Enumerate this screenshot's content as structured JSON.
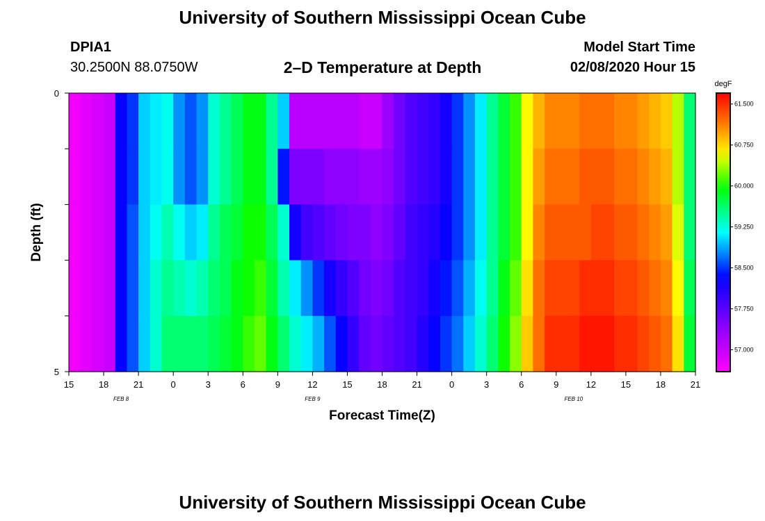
{
  "header": {
    "title": "University of Southern Mississippi Ocean Cube",
    "station_id": "DPIA1",
    "station_coords": "30.2500N 88.0750W",
    "plot_title": "2–D Temperature at Depth",
    "start_label": "Model Start Time",
    "start_value": "02/08/2020 Hour 15"
  },
  "footer": {
    "title": "University of Southern Mississippi Ocean Cube"
  },
  "chart_data": {
    "type": "heatmap",
    "xlabel": "Forecast Time(Z)",
    "ylabel": "Depth (ft)",
    "x_tick_labels": [
      "15",
      "18",
      "21",
      "0",
      "3",
      "6",
      "9",
      "12",
      "15",
      "18",
      "21",
      "0",
      "3",
      "6",
      "9",
      "12",
      "15",
      "18",
      "21"
    ],
    "day_labels": [
      {
        "label": "FEB 8",
        "tick_index": 1.5
      },
      {
        "label": "FEB 9",
        "tick_index": 7
      },
      {
        "label": "FEB 10",
        "tick_index": 14.5
      }
    ],
    "y_tick_labels": [
      "0",
      "5"
    ],
    "y_ticks_count": 6,
    "colorbar": {
      "unit": "degF",
      "min": 56.6,
      "max": 61.7,
      "labels": [
        "61.500",
        "60.750",
        "60.000",
        "59.250",
        "58.500",
        "57.750",
        "57.000"
      ],
      "label_values": [
        61.5,
        60.75,
        60.0,
        59.25,
        58.5,
        57.75,
        57.0
      ]
    },
    "time_steps_hours": 54,
    "depth_rows": 5,
    "values_degF": [
      [
        56.7,
        56.8,
        56.9,
        57.0,
        58.3,
        58.5,
        59.0,
        59.1,
        59.2,
        58.8,
        58.6,
        58.8,
        59.3,
        59.5,
        59.7,
        59.9,
        59.9,
        59.5,
        59.0,
        57.1,
        57.1,
        57.1,
        57.1,
        57.1,
        57.1,
        57.0,
        57.0,
        57.3,
        57.6,
        57.8,
        57.9,
        58.0,
        58.2,
        58.5,
        58.8,
        59.1,
        59.5,
        59.8,
        60.1,
        60.6,
        60.9,
        61.1,
        61.1,
        61.1,
        61.2,
        61.2,
        61.2,
        61.1,
        61.1,
        61.0,
        60.9,
        60.8,
        60.4,
        59.6
      ],
      [
        56.7,
        56.8,
        56.9,
        57.0,
        58.3,
        58.5,
        59.0,
        59.1,
        59.2,
        58.8,
        58.6,
        58.8,
        59.3,
        59.5,
        59.7,
        59.9,
        59.9,
        59.5,
        58.4,
        57.5,
        57.5,
        57.5,
        57.4,
        57.4,
        57.4,
        57.3,
        57.3,
        57.4,
        57.6,
        57.8,
        57.9,
        58.0,
        58.2,
        58.5,
        58.8,
        59.1,
        59.5,
        59.8,
        60.1,
        60.6,
        61.0,
        61.2,
        61.2,
        61.2,
        61.3,
        61.3,
        61.3,
        61.2,
        61.2,
        61.1,
        61.0,
        60.9,
        60.4,
        59.6
      ],
      [
        56.7,
        56.8,
        56.9,
        57.0,
        58.3,
        58.6,
        59.0,
        59.2,
        59.4,
        59.2,
        59.0,
        59.1,
        59.5,
        59.7,
        59.8,
        60.0,
        60.0,
        59.7,
        59.3,
        58.2,
        57.9,
        57.8,
        57.7,
        57.6,
        57.5,
        57.5,
        57.4,
        57.5,
        57.7,
        57.9,
        58.0,
        58.1,
        58.3,
        58.5,
        58.8,
        59.1,
        59.5,
        59.8,
        60.1,
        60.6,
        61.1,
        61.3,
        61.3,
        61.3,
        61.3,
        61.4,
        61.4,
        61.3,
        61.3,
        61.2,
        61.1,
        61.0,
        60.5,
        59.6
      ],
      [
        56.7,
        56.8,
        56.9,
        57.0,
        58.3,
        58.6,
        59.0,
        59.3,
        59.5,
        59.4,
        59.3,
        59.4,
        59.6,
        59.7,
        59.9,
        60.0,
        60.1,
        59.8,
        59.4,
        59.1,
        58.8,
        58.5,
        58.2,
        58.0,
        57.8,
        57.6,
        57.5,
        57.6,
        57.8,
        57.9,
        58.0,
        58.2,
        58.4,
        58.6,
        58.9,
        59.2,
        59.5,
        59.9,
        60.2,
        60.7,
        61.2,
        61.4,
        61.4,
        61.4,
        61.5,
        61.5,
        61.5,
        61.4,
        61.4,
        61.3,
        61.2,
        61.1,
        60.6,
        59.7
      ],
      [
        56.7,
        56.8,
        56.9,
        57.0,
        58.3,
        58.6,
        59.0,
        59.3,
        59.6,
        59.6,
        59.6,
        59.6,
        59.7,
        59.8,
        59.9,
        60.1,
        60.2,
        59.9,
        59.6,
        59.3,
        59.1,
        58.9,
        58.6,
        58.3,
        58.0,
        57.7,
        57.6,
        57.7,
        57.8,
        57.9,
        58.1,
        58.3,
        58.5,
        58.7,
        59.0,
        59.3,
        59.6,
        60.0,
        60.3,
        60.8,
        61.2,
        61.5,
        61.5,
        61.5,
        61.6,
        61.6,
        61.6,
        61.5,
        61.5,
        61.4,
        61.3,
        61.2,
        60.7,
        59.8
      ]
    ]
  }
}
